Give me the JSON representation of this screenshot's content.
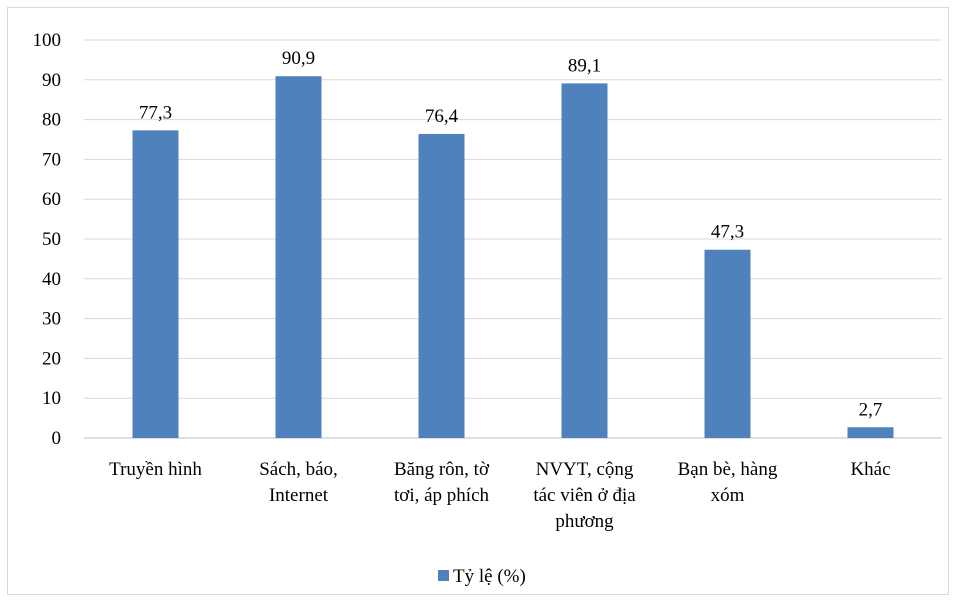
{
  "chart_data": {
    "type": "bar",
    "categories": [
      [
        "Truyền hình"
      ],
      [
        "Sách, báo,",
        "Internet"
      ],
      [
        "Băng rôn, tờ",
        "tơi, áp phích"
      ],
      [
        "NVYT, cộng",
        "tác viên ở địa",
        "phương"
      ],
      [
        "Bạn bè, hàng",
        "xóm"
      ],
      [
        "Khác"
      ]
    ],
    "series": [
      {
        "name": "Tỷ lệ (%)",
        "values": [
          77.3,
          90.9,
          76.4,
          89.1,
          47.3,
          2.7
        ],
        "labels": [
          "77,3",
          "90,9",
          "76,4",
          "89,1",
          "47,3",
          "2,7"
        ]
      }
    ],
    "ylim": [
      0,
      100
    ],
    "yticks": [
      0,
      10,
      20,
      30,
      40,
      50,
      60,
      70,
      80,
      90,
      100
    ],
    "grid": true,
    "legend_position": "bottom",
    "colors": {
      "bar": "#4f81bd",
      "grid": "#d9d9d9",
      "axis": "#bfbfbf"
    }
  }
}
